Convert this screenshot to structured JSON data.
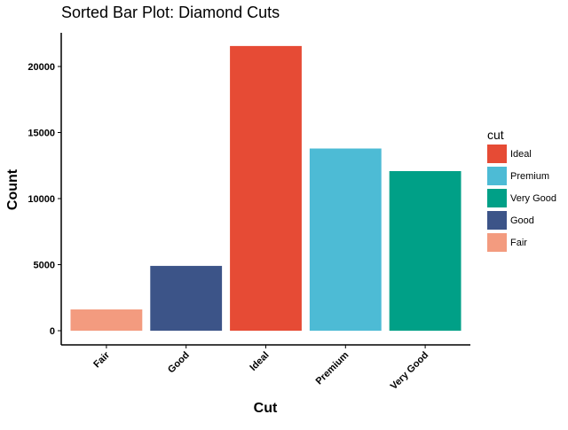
{
  "chart_data": {
    "type": "bar",
    "title": "Sorted Bar Plot: Diamond Cuts",
    "xlabel": "Cut",
    "ylabel": "Count",
    "categories": [
      "Fair",
      "Good",
      "Ideal",
      "Premium",
      "Very Good"
    ],
    "values": [
      1610,
      4906,
      21551,
      13791,
      12082
    ],
    "colors": [
      "#F39B7F",
      "#3C5488",
      "#E64B35",
      "#4DBBD5",
      "#00A087"
    ],
    "yticks": [
      0,
      5000,
      10000,
      15000,
      20000
    ],
    "ylim": [
      0,
      22000
    ],
    "grid": false,
    "legend": {
      "title": "cut",
      "position": "right",
      "entries": [
        {
          "label": "Ideal",
          "color": "#E64B35"
        },
        {
          "label": "Premium",
          "color": "#4DBBD5"
        },
        {
          "label": "Very Good",
          "color": "#00A087"
        },
        {
          "label": "Good",
          "color": "#3C5488"
        },
        {
          "label": "Fair",
          "color": "#F39B7F"
        }
      ]
    }
  }
}
